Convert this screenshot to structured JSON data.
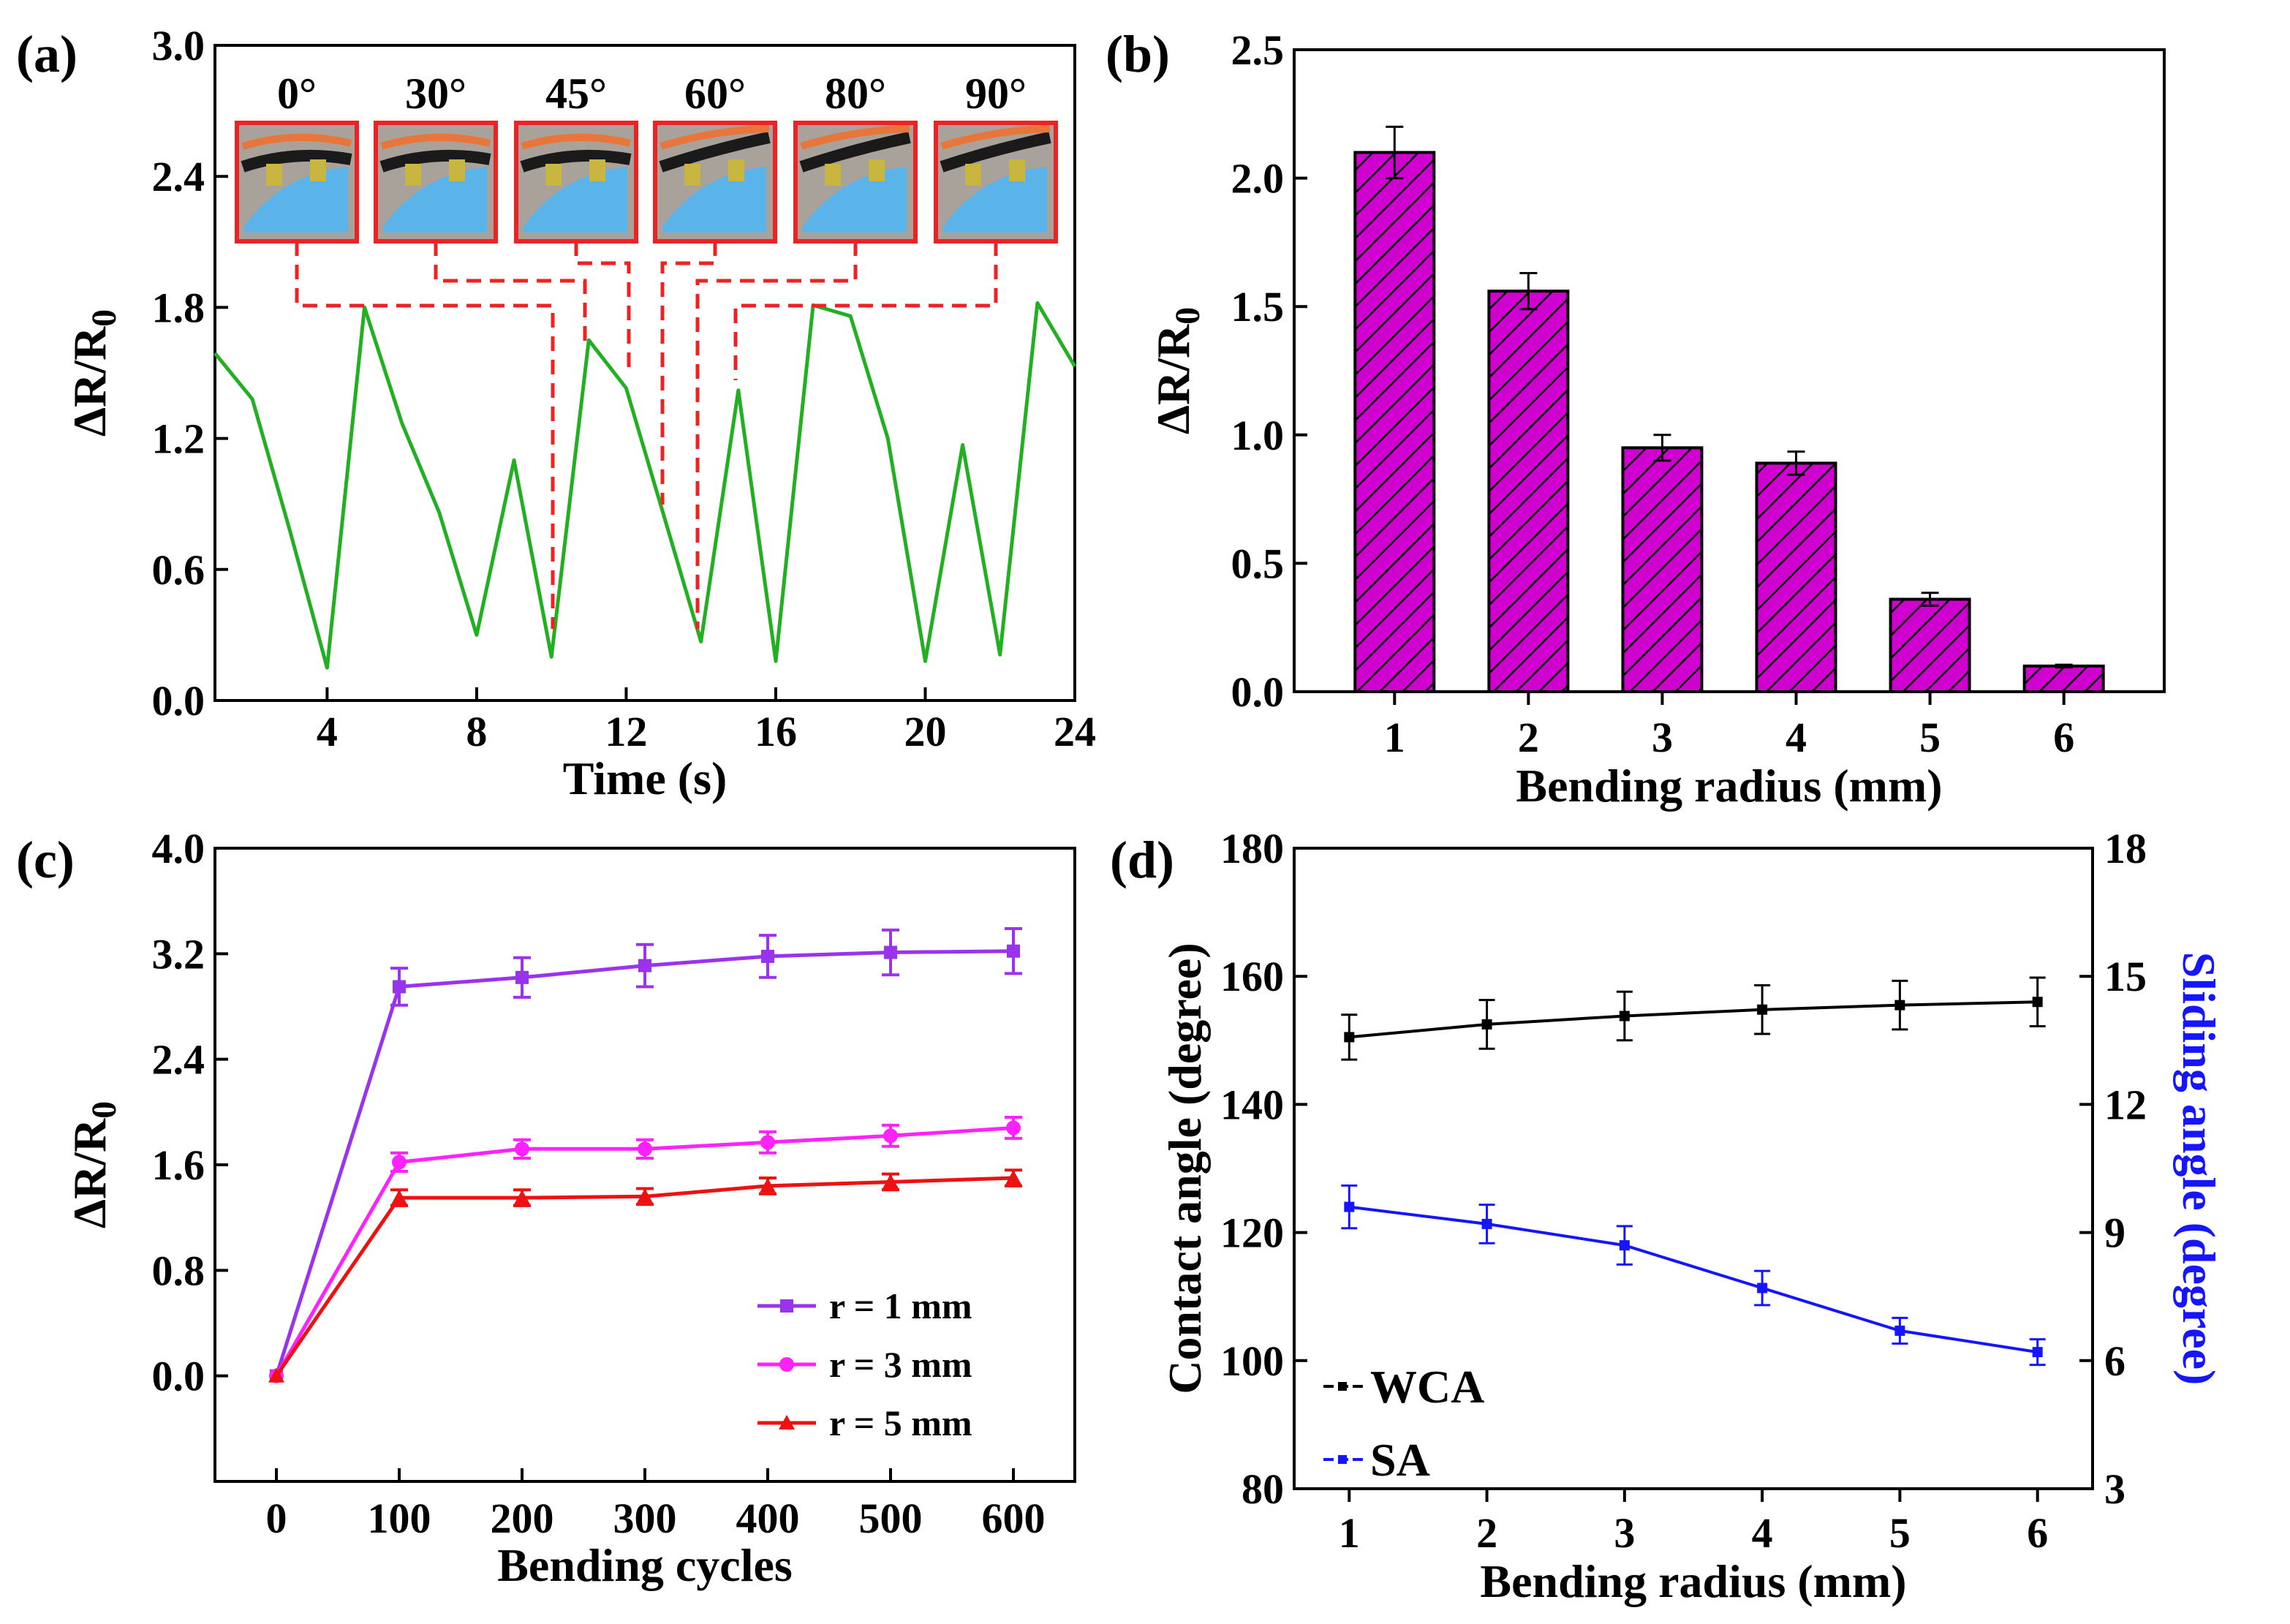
{
  "colors": {
    "a_line": "#22b022",
    "b_bar": "#d000d0",
    "c_r1": "#9933ee",
    "c_r3": "#ff22ff",
    "c_r5": "#ee1111",
    "d_wca": "#000000",
    "d_sa": "#1515ff",
    "inset_border": "#ee2222",
    "dash": "#ee2222"
  },
  "chart_data": [
    {
      "panel": "(a)",
      "type": "line",
      "xlabel": "Time (s)",
      "ylabel": "ΔR/R0",
      "xlim": [
        1,
        24
      ],
      "ylim": [
        0,
        3.0
      ],
      "xticks": [
        "4",
        "8",
        "12",
        "16",
        "20",
        "24"
      ],
      "yticks": [
        "0.0",
        "0.6",
        "1.2",
        "1.8",
        "2.4",
        "3.0"
      ],
      "x": [
        1,
        2,
        3,
        4,
        5,
        6,
        7,
        8,
        9,
        10,
        11,
        12,
        13,
        14,
        15,
        16,
        17,
        18,
        19,
        20,
        21,
        22,
        23,
        24
      ],
      "y": [
        1.59,
        1.38,
        0.78,
        0.15,
        1.8,
        1.27,
        0.86,
        0.3,
        1.1,
        0.2,
        1.65,
        1.43,
        0.85,
        0.27,
        1.42,
        0.18,
        1.81,
        1.76,
        1.2,
        0.18,
        1.17,
        0.21,
        1.82,
        1.53
      ],
      "inset_labels": [
        "0°",
        "30°",
        "45°",
        "60°",
        "80°",
        "90°"
      ]
    },
    {
      "panel": "(b)",
      "type": "bar",
      "xlabel": "Bending radius (mm)",
      "ylabel": "ΔR/R0",
      "ylim": [
        0,
        2.5
      ],
      "categories": [
        "1",
        "2",
        "3",
        "4",
        "5",
        "6"
      ],
      "yticks": [
        "0.0",
        "0.5",
        "1.0",
        "1.5",
        "2.0",
        "2.5"
      ],
      "values": [
        2.1,
        1.56,
        0.95,
        0.89,
        0.36,
        0.1
      ],
      "errors": [
        0.1,
        0.07,
        0.05,
        0.045,
        0.025,
        0.005
      ]
    },
    {
      "panel": "(c)",
      "type": "line",
      "xlabel": "Bending cycles",
      "ylabel": "ΔR/R0",
      "xlim": [
        -50,
        650
      ],
      "ylim": [
        -0.8,
        4.0
      ],
      "x": [
        0,
        100,
        200,
        300,
        400,
        500,
        600
      ],
      "xticks": [
        "0",
        "100",
        "200",
        "300",
        "400",
        "500",
        "600"
      ],
      "yticks": [
        "0.0",
        "0.8",
        "1.6",
        "2.4",
        "3.2",
        "4.0"
      ],
      "series": [
        {
          "name": "r = 1 mm",
          "values": [
            0.0,
            2.95,
            3.02,
            3.11,
            3.18,
            3.21,
            3.22
          ],
          "errors": [
            0.0,
            0.14,
            0.15,
            0.16,
            0.16,
            0.17,
            0.17
          ]
        },
        {
          "name": "r = 3 mm",
          "values": [
            0.0,
            1.62,
            1.72,
            1.72,
            1.77,
            1.82,
            1.88
          ],
          "errors": [
            0.0,
            0.07,
            0.07,
            0.07,
            0.08,
            0.08,
            0.08
          ]
        },
        {
          "name": "r = 5 mm",
          "values": [
            0.0,
            1.35,
            1.35,
            1.36,
            1.44,
            1.47,
            1.5
          ],
          "errors": [
            0.0,
            0.06,
            0.06,
            0.06,
            0.06,
            0.06,
            0.06
          ]
        }
      ]
    },
    {
      "panel": "(d)",
      "type": "line",
      "xlabel": "Bending radius (mm)",
      "ylabel": "Contact angle (degree)",
      "ylabel_right": "Sliding angle (degree)",
      "xlim": [
        0.6,
        6.4
      ],
      "ylim": [
        80,
        180
      ],
      "ylim_right": [
        3,
        18
      ],
      "x": [
        1,
        2,
        3,
        4,
        5,
        6
      ],
      "xticks": [
        "1",
        "2",
        "3",
        "4",
        "5",
        "6"
      ],
      "yticks": [
        "80",
        "100",
        "120",
        "140",
        "160",
        "180"
      ],
      "yticks_right": [
        "3",
        "6",
        "9",
        "12",
        "15",
        "18"
      ],
      "series": [
        {
          "name": "WCA",
          "axis": "left",
          "values": [
            150.5,
            152.5,
            153.8,
            154.8,
            155.5,
            156.0
          ],
          "errors": [
            3.5,
            3.8,
            3.8,
            3.8,
            3.8,
            3.8
          ]
        },
        {
          "name": "SA",
          "axis": "right",
          "values": [
            9.6,
            9.2,
            8.7,
            7.7,
            6.7,
            6.2
          ],
          "errors": [
            0.5,
            0.45,
            0.45,
            0.4,
            0.3,
            0.3
          ]
        }
      ]
    }
  ]
}
